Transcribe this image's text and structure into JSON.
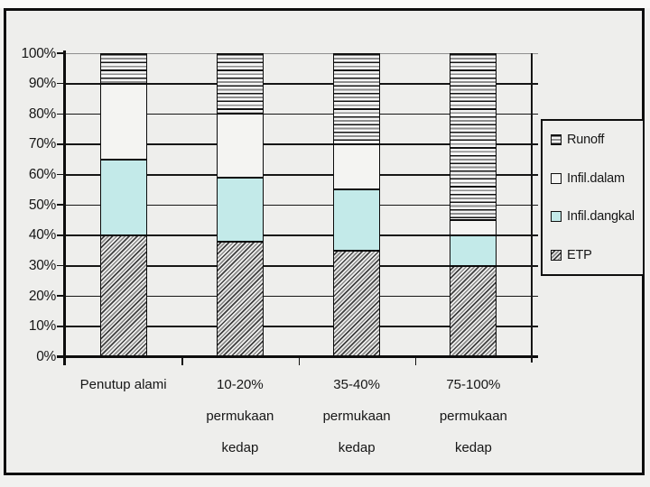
{
  "colors": {
    "slide_background": "#eeeeec",
    "infil_dangkal_fill": "#c3eae9",
    "pattern_dark": "#3e3e3e",
    "grid_top_line": "#8f8f8f",
    "axis": "#0d0d0d",
    "text": "#161616"
  },
  "chart_data": {
    "type": "bar",
    "subtype": "100%-stacked-column",
    "categories": [
      [
        "Penutup alami"
      ],
      [
        "10-20%",
        "permukaan",
        "kedap"
      ],
      [
        "35-40%",
        "permukaan",
        "kedap"
      ],
      [
        "75-100%",
        "permukaan",
        "kedap"
      ]
    ],
    "series": [
      {
        "name": "Runoff",
        "pattern": "horizontal-lines",
        "values": [
          10,
          20,
          30,
          55
        ]
      },
      {
        "name": "Infil.dalam",
        "pattern": "solid-white",
        "values": [
          25,
          21,
          15,
          5
        ]
      },
      {
        "name": "Infil.dangkal",
        "pattern": "solid-cyan",
        "values": [
          25,
          21,
          20,
          10
        ]
      },
      {
        "name": "ETP",
        "pattern": "diagonal-hatch",
        "values": [
          40,
          38,
          35,
          30
        ]
      }
    ],
    "stack_order_bottom_to_top": [
      "ETP",
      "Infil.dangkal",
      "Infil.dalam",
      "Runoff"
    ],
    "y_ticks": [
      "0%",
      "10%",
      "20%",
      "30%",
      "40%",
      "50%",
      "60%",
      "70%",
      "80%",
      "90%",
      "100%"
    ],
    "ylim": [
      0,
      100
    ],
    "grid": true,
    "legend_position": "right",
    "legend_items": [
      "Runoff",
      "Infil.dalam",
      "Infil.dangkal",
      "ETP"
    ]
  }
}
